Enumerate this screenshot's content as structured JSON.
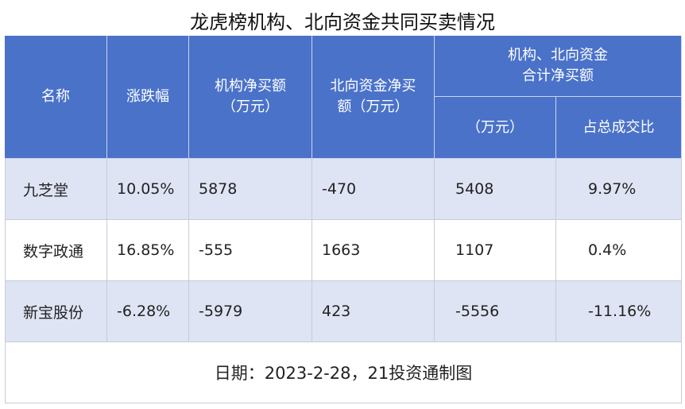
{
  "title": "龙虎榜机构、北向资金共同买卖情况",
  "table": {
    "headers": [
      "名称",
      "涨跌幅",
      "机构净买额\n（万元）",
      "北向资金净买\n额（万元）"
    ],
    "group_header": "机构、北向资金\n合计净买额",
    "sub_headers": [
      "（万元）",
      "占总成交比"
    ],
    "rows": [
      [
        "九芝堂",
        "10.05%",
        5878,
        -470,
        5408,
        "9.97%"
      ],
      [
        "数字政通",
        "16.85%",
        -555,
        1663,
        1107,
        "0.4%"
      ],
      [
        "新宝股份",
        "-6.28%",
        -5979,
        423,
        -5556,
        "-11.16%"
      ]
    ]
  },
  "footer": "日期：2023-2-28，21投资通制图"
}
